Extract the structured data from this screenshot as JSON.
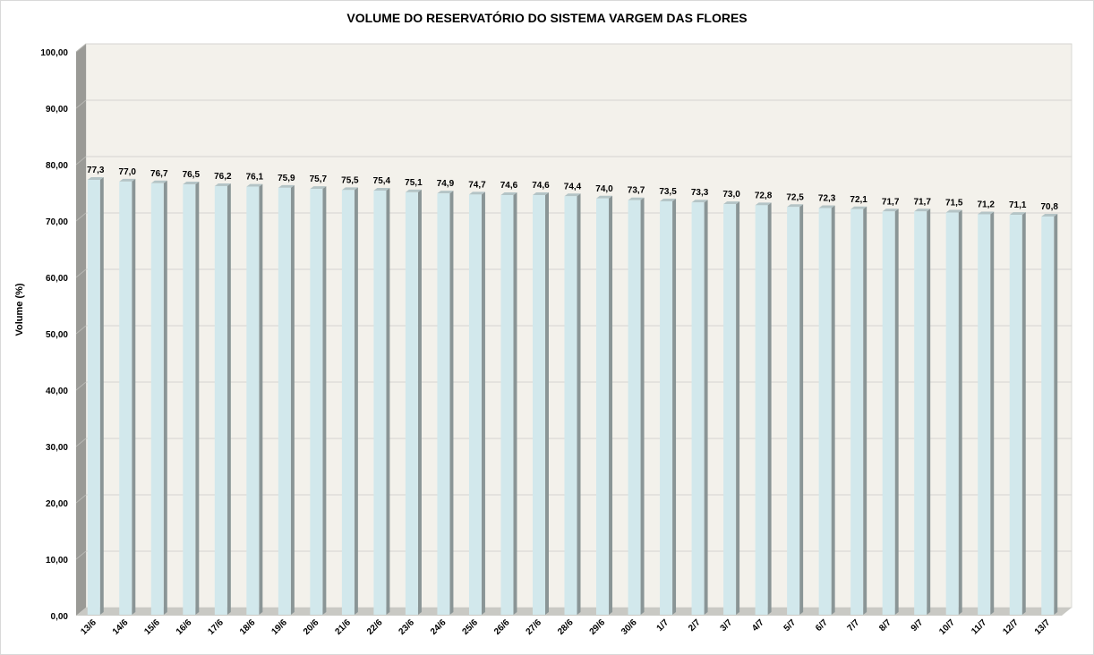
{
  "chart_data": {
    "type": "bar",
    "title": "VOLUME DO RESERVATÓRIO DO SISTEMA VARGEM DAS FLORES",
    "xlabel": "",
    "ylabel": "Volume (%)",
    "ylim": [
      0,
      100
    ],
    "ytick_step": 10,
    "yticks": [
      "0,00",
      "10,00",
      "20,00",
      "30,00",
      "40,00",
      "50,00",
      "60,00",
      "70,00",
      "80,00",
      "90,00",
      "100,00"
    ],
    "grid": true,
    "legend": "none",
    "categories": [
      "13/6",
      "14/6",
      "15/6",
      "16/6",
      "17/6",
      "18/6",
      "19/6",
      "20/6",
      "21/6",
      "22/6",
      "23/6",
      "24/6",
      "25/6",
      "26/6",
      "27/6",
      "28/6",
      "29/6",
      "30/6",
      "1/7",
      "2/7",
      "3/7",
      "4/7",
      "5/7",
      "6/7",
      "7/7",
      "8/7",
      "9/7",
      "10/7",
      "11/7",
      "12/7",
      "13/7"
    ],
    "values": [
      77.3,
      77.0,
      76.7,
      76.5,
      76.2,
      76.1,
      75.9,
      75.7,
      75.5,
      75.4,
      75.1,
      74.9,
      74.7,
      74.6,
      74.6,
      74.4,
      74.0,
      73.7,
      73.5,
      73.3,
      73.0,
      72.8,
      72.5,
      72.3,
      72.1,
      71.7,
      71.7,
      71.5,
      71.2,
      71.1,
      70.8
    ],
    "data_labels": [
      "77,3",
      "77,0",
      "76,7",
      "76,5",
      "76,2",
      "76,1",
      "75,9",
      "75,7",
      "75,5",
      "75,4",
      "75,1",
      "74,9",
      "74,7",
      "74,6",
      "74,6",
      "74,4",
      "74,0",
      "73,7",
      "73,5",
      "73,3",
      "73,0",
      "72,8",
      "72,5",
      "72,3",
      "72,1",
      "71,7",
      "71,7",
      "71,5",
      "71,2",
      "71,1",
      "70,8"
    ],
    "colors": {
      "bar_front": "#d2e8ec",
      "bar_side": "#8a9596",
      "bar_top": "#b4c4c6",
      "plot_back": "#f3f1eb",
      "wall_side": "#9a9a96",
      "floor": "#c9c9c4",
      "grid": "#d4d4d0"
    }
  }
}
